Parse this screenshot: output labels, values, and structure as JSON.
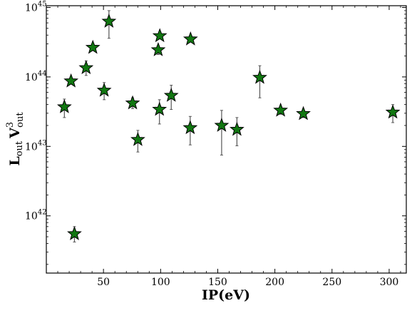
{
  "chart_data": {
    "type": "scatter",
    "title": "",
    "xlabel": "IP(eV)",
    "ylabel": {
      "main": "L",
      "main_sub": "out",
      "second": "V",
      "second_sup": "3",
      "second_sub": "out"
    },
    "xlim": [
      0,
      315
    ],
    "ylim": [
      1.5e+41,
      1.06e+45
    ],
    "yscale": "log",
    "grid": false,
    "legend": "none",
    "marker": "star",
    "marker_color": "#117711",
    "errorbar_color": "#555555",
    "x_ticks": [
      {
        "value": 50,
        "label": "50"
      },
      {
        "value": 100,
        "label": "100"
      },
      {
        "value": 150,
        "label": "150"
      },
      {
        "value": 200,
        "label": "200"
      },
      {
        "value": 250,
        "label": "250"
      },
      {
        "value": 300,
        "label": "300"
      }
    ],
    "y_ticks": [
      {
        "value": 1e+42,
        "base": "10",
        "exp": "42"
      },
      {
        "value": 1e+43,
        "base": "10",
        "exp": "43"
      },
      {
        "value": 1e+44,
        "base": "10",
        "exp": "44"
      },
      {
        "value": 1e+45,
        "base": "10",
        "exp": "45"
      }
    ],
    "points": [
      {
        "x": 15.8,
        "y": 3.7e+43,
        "ylo": 2.6e+43,
        "yhi": 4.8e+43
      },
      {
        "x": 21.6,
        "y": 8.7e+43
      },
      {
        "x": 34.8,
        "y": 1.35e+44,
        "ylo": 1.05e+44,
        "yhi": 1.7e+44
      },
      {
        "x": 40.7,
        "y": 2.65e+44
      },
      {
        "x": 50.6,
        "y": 6.4e+43,
        "ylo": 4.7e+43,
        "yhi": 8.3e+43
      },
      {
        "x": 54.8,
        "y": 6.3e+44,
        "ylo": 3.6e+44,
        "yhi": 9e+44
      },
      {
        "x": 24.6,
        "y": 5.5e+41,
        "ylo": 4.2e+41,
        "yhi": 7e+41
      },
      {
        "x": 75.5,
        "y": 4.2e+43,
        "ylo": 3.5e+43,
        "yhi": 5e+43
      },
      {
        "x": 80.1,
        "y": 1.25e+43,
        "ylo": 8.3e+42,
        "yhi": 1.7e+43
      },
      {
        "x": 97.9,
        "y": 2.45e+44,
        "ylo": 2.1e+44,
        "yhi": 2.8e+44
      },
      {
        "x": 99.3,
        "y": 3.9e+44
      },
      {
        "x": 99.0,
        "y": 3.4e+43,
        "ylo": 2.1e+43,
        "yhi": 4.7e+43
      },
      {
        "x": 109.3,
        "y": 5.4e+43,
        "ylo": 3.4e+43,
        "yhi": 7.6e+43
      },
      {
        "x": 126.2,
        "y": 3.5e+44
      },
      {
        "x": 125.9,
        "y": 1.85e+43,
        "ylo": 1.05e+43,
        "yhi": 2.7e+43
      },
      {
        "x": 153.4,
        "y": 2e+43,
        "ylo": 7.5e+42,
        "yhi": 3.3e+43
      },
      {
        "x": 166.8,
        "y": 1.75e+43,
        "ylo": 1.02e+43,
        "yhi": 2.6e+43
      },
      {
        "x": 186.8,
        "y": 9.8e+43,
        "ylo": 5e+43,
        "yhi": 1.45e+44
      },
      {
        "x": 205.0,
        "y": 3.3e+43,
        "ylo": 2.9e+43,
        "yhi": 3.7e+43
      },
      {
        "x": 224.9,
        "y": 2.95e+43,
        "ylo": 2.6e+43,
        "yhi": 3.3e+43
      },
      {
        "x": 303.2,
        "y": 3.1e+43,
        "ylo": 2.2e+43,
        "yhi": 4e+43
      }
    ]
  }
}
